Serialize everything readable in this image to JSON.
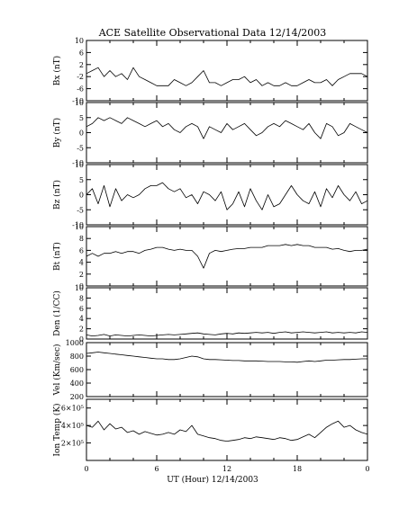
{
  "chart_data": {
    "type": "line",
    "title": "ACE Satellite Observational Data   12/14/2003",
    "xlabel": "UT (Hour)  12/14/2003",
    "x_ticks": [
      "0",
      "6",
      "12",
      "18",
      "0"
    ],
    "xlim": [
      0,
      24
    ],
    "grid": false,
    "panels": [
      {
        "id": "bx",
        "ylabel": "Bx (nT)",
        "ylim": [
          -10,
          10
        ],
        "yticks": [
          -10,
          -6,
          -2,
          2,
          6,
          10
        ],
        "ytick_labels": [
          "-10",
          "-6",
          "-2",
          "2",
          "6",
          "10"
        ],
        "series": [
          {
            "x": [
              0,
              0.5,
              1,
              1.5,
              2,
              2.5,
              3,
              3.5,
              4,
              4.5,
              5,
              5.5,
              6,
              6.5,
              7,
              7.5,
              8,
              8.5,
              9,
              9.5,
              10,
              10.5,
              11,
              11.5,
              12,
              12.5,
              13,
              13.5,
              14,
              14.5,
              15,
              15.5,
              16,
              16.5,
              17,
              17.5,
              18,
              18.5,
              19,
              19.5,
              20,
              20.5,
              21,
              21.5,
              22,
              22.5,
              23,
              23.5,
              24
            ],
            "y": [
              -1,
              0,
              1,
              -2,
              0,
              -2,
              -1,
              -3,
              1,
              -2,
              -3,
              -4,
              -5,
              -5,
              -5,
              -3,
              -4,
              -5,
              -4,
              -2,
              0,
              -4,
              -4,
              -5,
              -4,
              -3,
              -3,
              -2,
              -4,
              -3,
              -5,
              -4,
              -5,
              -5,
              -4,
              -5,
              -5,
              -4,
              -3,
              -4,
              -4,
              -3,
              -5,
              -3,
              -2,
              -1,
              -1,
              -1,
              -2
            ]
          }
        ]
      },
      {
        "id": "by",
        "ylabel": "By (nT)",
        "ylim": [
          -10,
          10
        ],
        "yticks": [
          -10,
          -5,
          0,
          5,
          10
        ],
        "ytick_labels": [
          "-10",
          "-5",
          "0",
          "5",
          "10"
        ],
        "series": [
          {
            "x": [
              0,
              0.5,
              1,
              1.5,
              2,
              2.5,
              3,
              3.5,
              4,
              4.5,
              5,
              5.5,
              6,
              6.5,
              7,
              7.5,
              8,
              8.5,
              9,
              9.5,
              10,
              10.5,
              11,
              11.5,
              12,
              12.5,
              13,
              13.5,
              14,
              14.5,
              15,
              15.5,
              16,
              16.5,
              17,
              17.5,
              18,
              18.5,
              19,
              19.5,
              20,
              20.5,
              21,
              21.5,
              22,
              22.5,
              23,
              23.5,
              24
            ],
            "y": [
              2,
              3,
              5,
              4,
              5,
              4,
              3,
              5,
              4,
              3,
              2,
              3,
              4,
              2,
              3,
              1,
              0,
              2,
              3,
              2,
              -2,
              2,
              1,
              0,
              3,
              1,
              2,
              3,
              1,
              -1,
              0,
              2,
              3,
              2,
              4,
              3,
              2,
              1,
              3,
              0,
              -2,
              3,
              2,
              -1,
              0,
              3,
              2,
              1,
              0
            ]
          }
        ]
      },
      {
        "id": "bz",
        "ylabel": "Bz (nT)",
        "ylim": [
          -10,
          10
        ],
        "yticks": [
          -10,
          -5,
          0,
          5,
          10
        ],
        "ytick_labels": [
          "-10",
          "-5",
          "0",
          "5",
          "10"
        ],
        "series": [
          {
            "x": [
              0,
              0.5,
              1,
              1.5,
              2,
              2.5,
              3,
              3.5,
              4,
              4.5,
              5,
              5.5,
              6,
              6.5,
              7,
              7.5,
              8,
              8.5,
              9,
              9.5,
              10,
              10.5,
              11,
              11.5,
              12,
              12.5,
              13,
              13.5,
              14,
              14.5,
              15,
              15.5,
              16,
              16.5,
              17,
              17.5,
              18,
              18.5,
              19,
              19.5,
              20,
              20.5,
              21,
              21.5,
              22,
              22.5,
              23,
              23.5,
              24
            ],
            "y": [
              0,
              2,
              -3,
              3,
              -4,
              2,
              -2,
              0,
              -1,
              0,
              2,
              3,
              3,
              4,
              2,
              1,
              2,
              -1,
              0,
              -3,
              1,
              0,
              -2,
              1,
              -5,
              -3,
              1,
              -4,
              2,
              -2,
              -5,
              0,
              -4,
              -3,
              0,
              3,
              0,
              -2,
              -3,
              1,
              -4,
              2,
              -1,
              3,
              0,
              -2,
              1,
              -3,
              -2
            ]
          }
        ]
      },
      {
        "id": "bt",
        "ylabel": "Bt (nT)",
        "ylim": [
          0,
          10
        ],
        "yticks": [
          0,
          2,
          4,
          6,
          8,
          10
        ],
        "ytick_labels": [
          "0",
          "2",
          "4",
          "6",
          "8",
          "10"
        ],
        "series": [
          {
            "x": [
              0,
              0.5,
              1,
              1.5,
              2,
              2.5,
              3,
              3.5,
              4,
              4.5,
              5,
              5.5,
              6,
              6.5,
              7,
              7.5,
              8,
              8.5,
              9,
              9.5,
              10,
              10.5,
              11,
              11.5,
              12,
              12.5,
              13,
              13.5,
              14,
              14.5,
              15,
              15.5,
              16,
              16.5,
              17,
              17.5,
              18,
              18.5,
              19,
              19.5,
              20,
              20.5,
              21,
              21.5,
              22,
              22.5,
              23,
              23.5,
              24
            ],
            "y": [
              5,
              5.5,
              5,
              5.5,
              5.5,
              5.8,
              5.5,
              5.8,
              5.8,
              5.5,
              6,
              6.2,
              6.5,
              6.5,
              6.2,
              6,
              6.2,
              6,
              6,
              5,
              3,
              5.5,
              6,
              5.8,
              6,
              6.2,
              6.3,
              6.3,
              6.5,
              6.5,
              6.5,
              6.8,
              6.8,
              6.8,
              7,
              6.8,
              7,
              6.8,
              6.8,
              6.5,
              6.5,
              6.5,
              6.2,
              6.3,
              6,
              5.8,
              6,
              6,
              6.2
            ]
          }
        ]
      },
      {
        "id": "den",
        "ylabel": "Den (1/CC)",
        "ylim": [
          0,
          10
        ],
        "yticks": [
          0,
          2,
          4,
          6,
          8,
          10
        ],
        "ytick_labels": [
          "0",
          "2",
          "4",
          "6",
          "8",
          "10"
        ],
        "series": [
          {
            "x": [
              0,
              0.5,
              1,
              1.5,
              2,
              2.5,
              3,
              3.5,
              4,
              4.5,
              5,
              5.5,
              6,
              6.5,
              7,
              7.5,
              8,
              8.5,
              9,
              9.5,
              10,
              10.5,
              11,
              11.5,
              12,
              12.5,
              13,
              13.5,
              14,
              14.5,
              15,
              15.5,
              16,
              16.5,
              17,
              17.5,
              18,
              18.5,
              19,
              19.5,
              20,
              20.5,
              21,
              21.5,
              22,
              22.5,
              23,
              23.5,
              24
            ],
            "y": [
              0.8,
              0.6,
              0.7,
              0.9,
              0.6,
              0.8,
              0.7,
              0.6,
              0.7,
              0.8,
              0.7,
              0.6,
              0.7,
              0.8,
              0.9,
              0.8,
              0.9,
              1,
              1.1,
              1.2,
              1,
              0.9,
              0.8,
              1,
              1.1,
              1,
              1.2,
              1.1,
              1.2,
              1.3,
              1.2,
              1.3,
              1.1,
              1.3,
              1.4,
              1.2,
              1.3,
              1.4,
              1.3,
              1.2,
              1.3,
              1.4,
              1.2,
              1.3,
              1.2,
              1.3,
              1.2,
              1.4,
              1.3
            ]
          }
        ]
      },
      {
        "id": "vel",
        "ylabel": "Vel (Km/sec)",
        "ylim": [
          200,
          1000
        ],
        "yticks": [
          200,
          400,
          600,
          800,
          1000
        ],
        "ytick_labels": [
          "200",
          "400",
          "600",
          "800",
          "1000"
        ],
        "series": [
          {
            "x": [
              0,
              0.5,
              1,
              1.5,
              2,
              2.5,
              3,
              3.5,
              4,
              4.5,
              5,
              5.5,
              6,
              6.5,
              7,
              7.5,
              8,
              8.5,
              9,
              9.5,
              10,
              10.5,
              11,
              11.5,
              12,
              12.5,
              13,
              13.5,
              14,
              14.5,
              15,
              15.5,
              16,
              16.5,
              17,
              17.5,
              18,
              18.5,
              19,
              19.5,
              20,
              20.5,
              21,
              21.5,
              22,
              22.5,
              23,
              23.5,
              24
            ],
            "y": [
              840,
              850,
              860,
              850,
              840,
              830,
              820,
              810,
              800,
              790,
              780,
              770,
              760,
              760,
              750,
              750,
              760,
              780,
              800,
              790,
              760,
              750,
              750,
              745,
              740,
              735,
              735,
              730,
              730,
              730,
              725,
              720,
              720,
              720,
              715,
              715,
              710,
              720,
              730,
              720,
              730,
              740,
              740,
              745,
              750,
              750,
              755,
              760,
              760
            ]
          }
        ]
      },
      {
        "id": "temp",
        "ylabel": "Ion Temp (K)",
        "ylim": [
          0,
          700000
        ],
        "yticks": [
          200000,
          400000,
          600000
        ],
        "ytick_labels": [
          "2×10⁵",
          "4×10⁵",
          "6×10⁵"
        ],
        "series": [
          {
            "x": [
              0,
              0.5,
              1,
              1.5,
              2,
              2.5,
              3,
              3.5,
              4,
              4.5,
              5,
              5.5,
              6,
              6.5,
              7,
              7.5,
              8,
              8.5,
              9,
              9.5,
              10,
              10.5,
              11,
              11.5,
              12,
              12.5,
              13,
              13.5,
              14,
              14.5,
              15,
              15.5,
              16,
              16.5,
              17,
              17.5,
              18,
              18.5,
              19,
              19.5,
              20,
              20.5,
              21,
              21.5,
              22,
              22.5,
              23,
              23.5,
              24
            ],
            "y": [
              400000,
              380000,
              450000,
              350000,
              420000,
              360000,
              380000,
              320000,
              340000,
              300000,
              330000,
              310000,
              290000,
              300000,
              320000,
              300000,
              350000,
              330000,
              400000,
              300000,
              280000,
              260000,
              250000,
              230000,
              220000,
              230000,
              240000,
              260000,
              250000,
              270000,
              260000,
              250000,
              240000,
              260000,
              250000,
              230000,
              240000,
              270000,
              300000,
              260000,
              320000,
              380000,
              420000,
              450000,
              380000,
              400000,
              350000,
              320000,
              300000
            ]
          }
        ]
      }
    ]
  }
}
